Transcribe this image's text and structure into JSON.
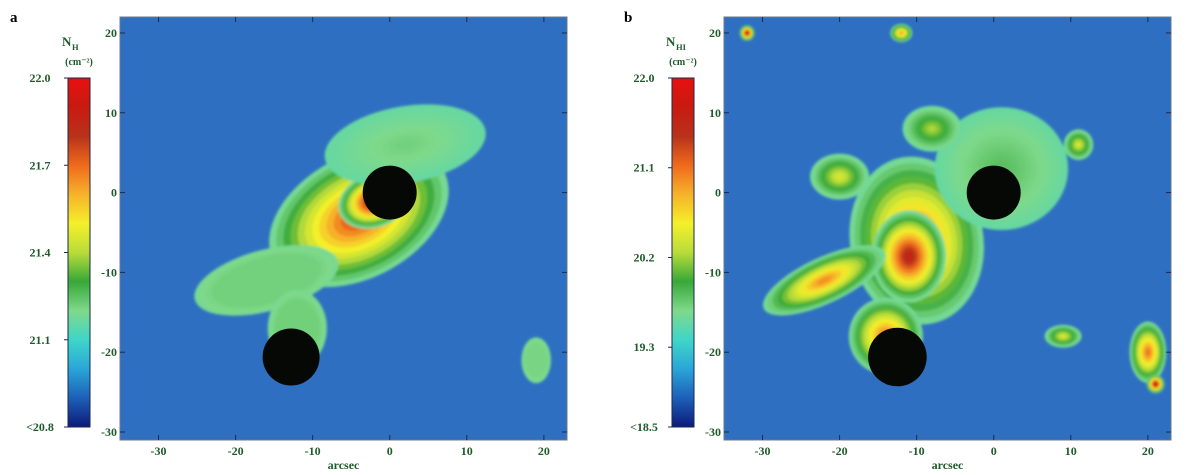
{
  "chart_data": [
    {
      "type": "heatmap",
      "panel_label": "a",
      "colorbar": {
        "symbol": "N",
        "subscript": "H",
        "units": "(cm⁻²)",
        "tick_labels": [
          "22.0",
          "21.7",
          "21.4",
          "21.1",
          "<20.8"
        ],
        "tick_values": [
          22.0,
          21.7,
          21.4,
          21.1,
          20.8
        ],
        "range": [
          20.8,
          22.0
        ],
        "colormap": [
          "#0d1a7a",
          "#1d5fb8",
          "#2aa6d8",
          "#3fd6c8",
          "#7fd98a",
          "#38a838",
          "#b9dc3a",
          "#f4f02a",
          "#f6b22a",
          "#ef6a1c",
          "#b8321a",
          "#c81a10",
          "#e81010"
        ]
      },
      "xlabel": "arcsec",
      "x_tick_labels": [
        "-30",
        "-20",
        "-10",
        "0",
        "10",
        "20"
      ],
      "x_tick_values": [
        -30,
        -20,
        -10,
        0,
        10,
        20
      ],
      "y_tick_labels": [
        "20",
        "10",
        "0",
        "-10",
        "-20",
        "-30"
      ],
      "y_tick_values": [
        20,
        10,
        0,
        -10,
        -20,
        -30
      ],
      "xlim": [
        -35,
        23
      ],
      "ylim": [
        -31,
        22
      ],
      "background_color": "#2f6fc1",
      "masked_sources": [
        {
          "x": 0,
          "y": 0,
          "radius": 3.5
        },
        {
          "x": -12.8,
          "y": -20.6,
          "radius": 3.7
        }
      ],
      "emission_blobs": [
        {
          "x": -4,
          "y": -3,
          "sx": 13,
          "sy": 8,
          "angle": 28,
          "peak": 0.82
        },
        {
          "x": -2,
          "y": -1,
          "sx": 5,
          "sy": 3.5,
          "angle": 20,
          "peak": 0.95
        },
        {
          "x": -16,
          "y": -11,
          "sx": 10,
          "sy": 4,
          "angle": 15,
          "peak": 0.28
        },
        {
          "x": 2,
          "y": 6,
          "sx": 11,
          "sy": 5,
          "angle": 10,
          "peak": 0.35
        },
        {
          "x": -12,
          "y": -17,
          "sx": 4,
          "sy": 5,
          "angle": 0,
          "peak": 0.3
        },
        {
          "x": 19,
          "y": -21,
          "sx": 2,
          "sy": 3,
          "angle": 0,
          "peak": 0.22
        }
      ]
    },
    {
      "type": "heatmap",
      "panel_label": "b",
      "colorbar": {
        "symbol": "N",
        "subscript": "HI",
        "units": "(cm⁻²)",
        "tick_labels": [
          "22.0",
          "21.1",
          "20.2",
          "19.3",
          "<18.5"
        ],
        "tick_values": [
          22.0,
          21.1,
          20.2,
          19.3,
          18.5
        ],
        "range": [
          18.5,
          22.0
        ],
        "colormap": [
          "#0d1a7a",
          "#1d5fb8",
          "#2aa6d8",
          "#3fd6c8",
          "#7fd98a",
          "#38a838",
          "#b9dc3a",
          "#f4f02a",
          "#f6b22a",
          "#ef6a1c",
          "#b8321a",
          "#c81a10",
          "#e81010"
        ]
      },
      "xlabel": "arcsec",
      "x_tick_labels": [
        "-30",
        "-20",
        "-10",
        "0",
        "10",
        "20"
      ],
      "x_tick_values": [
        -30,
        -20,
        -10,
        0,
        10,
        20
      ],
      "y_tick_labels": [
        "20",
        "10",
        "0",
        "-10",
        "-20",
        "-30"
      ],
      "y_tick_values": [
        20,
        10,
        0,
        -10,
        -20,
        -30
      ],
      "xlim": [
        -35,
        23
      ],
      "ylim": [
        -31,
        22
      ],
      "background_color": "#2f6fc1",
      "masked_sources": [
        {
          "x": 0,
          "y": 0,
          "radius": 3.5
        },
        {
          "x": -12.5,
          "y": -20.6,
          "radius": 3.8
        }
      ],
      "emission_blobs": [
        {
          "x": -10,
          "y": -6,
          "sx": 9,
          "sy": 11,
          "angle": 10,
          "peak": 0.78
        },
        {
          "x": -11,
          "y": -8,
          "sx": 5,
          "sy": 6,
          "angle": 0,
          "peak": 0.9
        },
        {
          "x": 1,
          "y": 3,
          "sx": 9,
          "sy": 8,
          "angle": 0,
          "peak": 0.38
        },
        {
          "x": -22,
          "y": -11,
          "sx": 9,
          "sy": 3,
          "angle": 25,
          "peak": 0.72
        },
        {
          "x": -14,
          "y": -18,
          "sx": 5,
          "sy": 5,
          "angle": 0,
          "peak": 0.75
        },
        {
          "x": -20,
          "y": 2,
          "sx": 4,
          "sy": 3,
          "angle": 0,
          "peak": 0.55
        },
        {
          "x": 20,
          "y": -20,
          "sx": 2.5,
          "sy": 4,
          "angle": 0,
          "peak": 0.75
        },
        {
          "x": 11,
          "y": 6,
          "sx": 2,
          "sy": 2,
          "angle": 0,
          "peak": 0.55
        },
        {
          "x": 9,
          "y": -18,
          "sx": 2.5,
          "sy": 1.5,
          "angle": 0,
          "peak": 0.55
        },
        {
          "x": -12,
          "y": 20,
          "sx": 1.5,
          "sy": 1.2,
          "angle": 0,
          "peak": 0.7
        },
        {
          "x": -32,
          "y": 20,
          "sx": 1,
          "sy": 1,
          "angle": 0,
          "peak": 0.95
        },
        {
          "x": 21,
          "y": -24,
          "sx": 1.2,
          "sy": 1.2,
          "angle": 0,
          "peak": 0.95
        },
        {
          "x": -8,
          "y": 8,
          "sx": 4,
          "sy": 3,
          "angle": 0,
          "peak": 0.5
        }
      ]
    }
  ]
}
